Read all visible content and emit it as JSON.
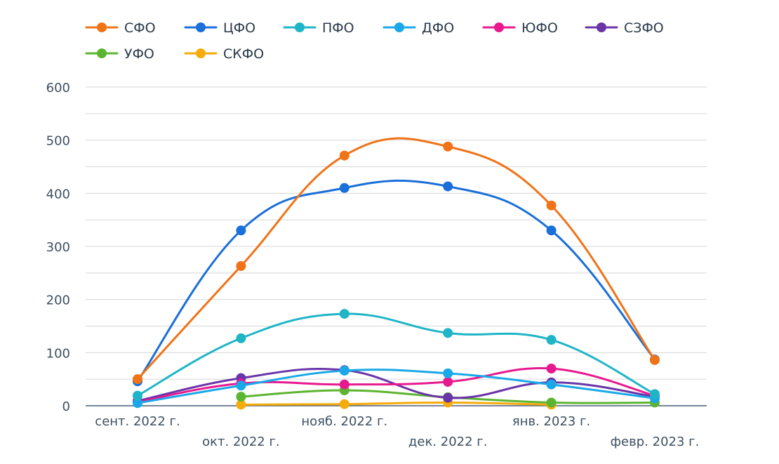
{
  "chart_data": {
    "type": "line",
    "title": "",
    "xlabel": "",
    "ylabel": "",
    "ylim": [
      0,
      600
    ],
    "yticks": [
      0,
      100,
      200,
      300,
      400,
      500,
      600
    ],
    "grid": true,
    "legend_position": "top",
    "categories": [
      "сент. 2022 г.",
      "окт. 2022 г.",
      "нояб. 2022 г.",
      "дек. 2022 г.",
      "янв. 2023 г.",
      "февр. 2023 г."
    ],
    "series": [
      {
        "name": "СФО",
        "color": "#f07318",
        "values": [
          50,
          263,
          471,
          488,
          377,
          86
        ]
      },
      {
        "name": "ЦФО",
        "color": "#1a6fd8",
        "values": [
          46,
          330,
          410,
          413,
          330,
          87
        ]
      },
      {
        "name": "ПФО",
        "color": "#1fb5c6",
        "values": [
          19,
          127,
          173,
          137,
          124,
          22
        ]
      },
      {
        "name": "ДФО",
        "color": "#1aa8e8",
        "values": [
          5,
          38,
          66,
          61,
          40,
          14
        ]
      },
      {
        "name": "ЮФО",
        "color": "#e8198f",
        "values": [
          7,
          42,
          40,
          45,
          70,
          19
        ]
      },
      {
        "name": "СЗФО",
        "color": "#6a35a8",
        "values": [
          9,
          52,
          67,
          15,
          44,
          17
        ]
      },
      {
        "name": "УФО",
        "color": "#5cb531",
        "values": [
          null,
          17,
          29,
          16,
          6,
          6
        ]
      },
      {
        "name": "СКФО",
        "color": "#f5ab0a",
        "values": [
          null,
          2,
          3,
          6,
          2,
          null
        ]
      }
    ]
  }
}
